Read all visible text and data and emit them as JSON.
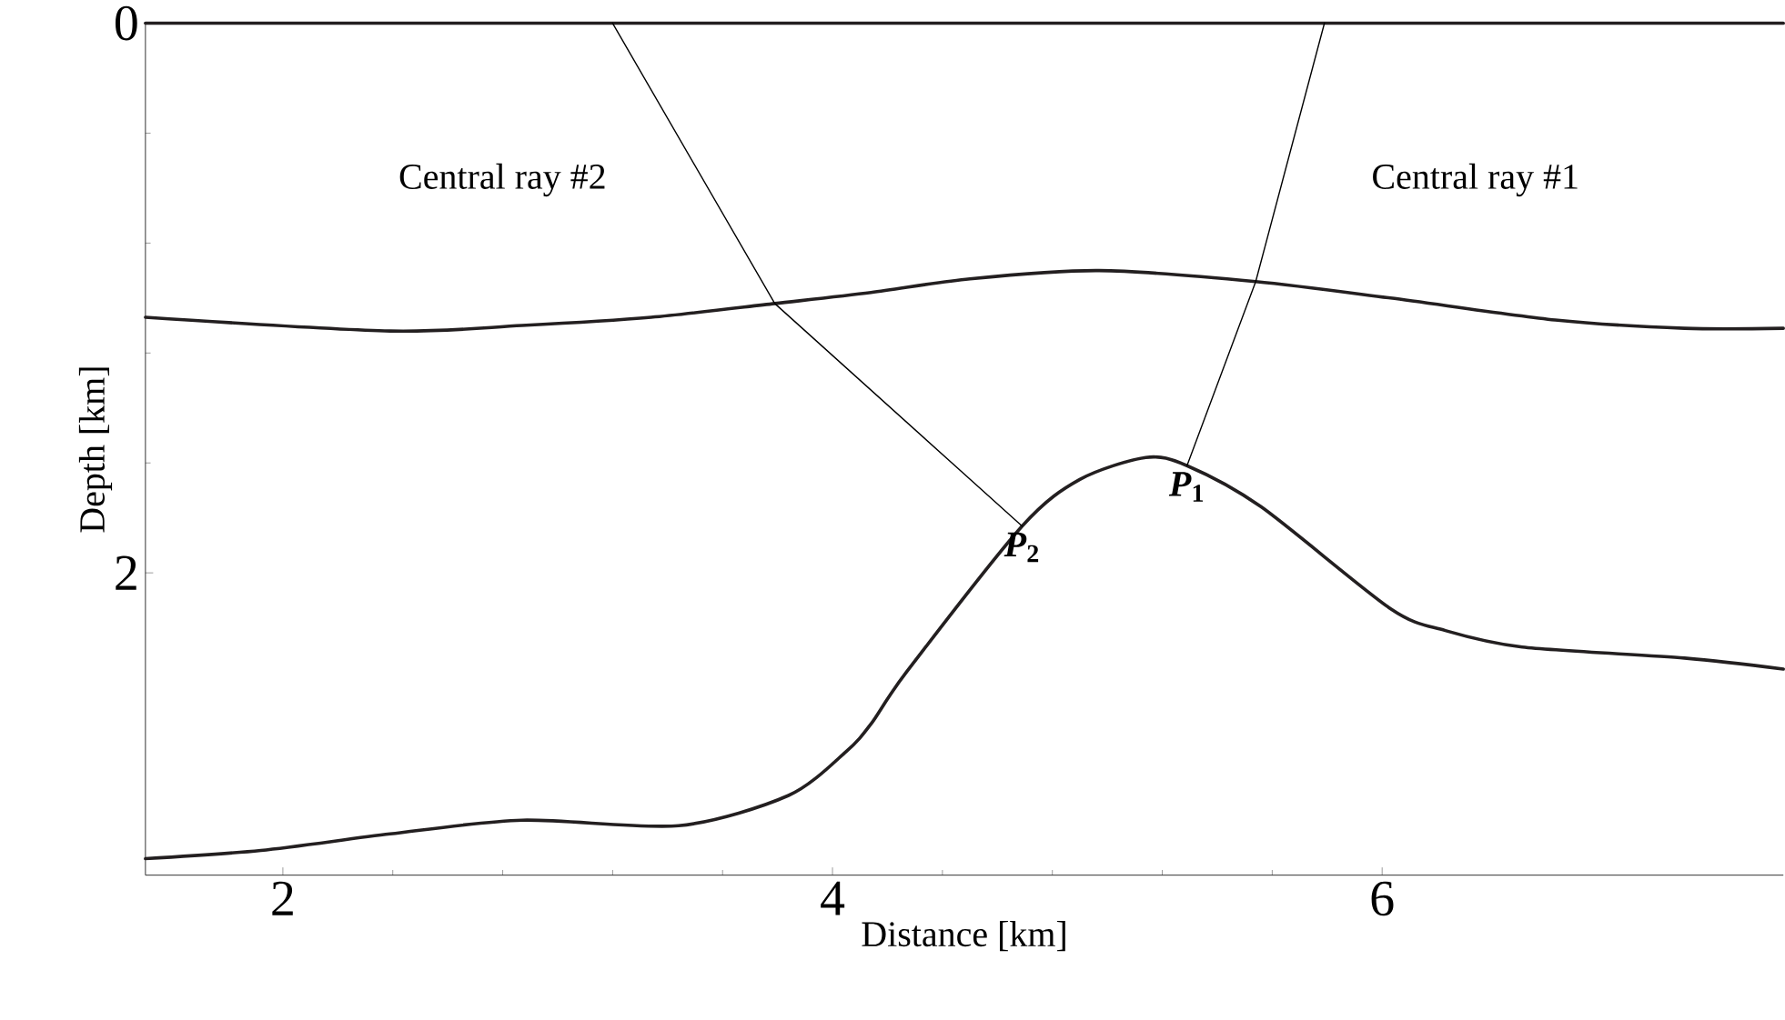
{
  "chart_data": {
    "type": "line",
    "xlabel": "Distance [km]",
    "ylabel": "Depth [km]",
    "xlim": [
      1.5,
      7.46
    ],
    "ylim": [
      3.1,
      0
    ],
    "xticks": [
      2,
      4,
      6
    ],
    "yticks": [
      0,
      2
    ],
    "grid": false,
    "marker": "none",
    "line_style": "solid",
    "series": [
      {
        "color": "#231f20",
        "x": [
          1.5,
          7.46
        ],
        "values": [
          0,
          0
        ]
      },
      {
        "color": "#231f20",
        "x": [
          1.5,
          2.39,
          2.87,
          3.34,
          3.79,
          4.14,
          4.5,
          4.97,
          5.54,
          6.03,
          6.63,
          7.1,
          7.46
        ],
        "values": [
          1.07,
          1.12,
          1.1,
          1.07,
          1.02,
          0.98,
          0.93,
          0.9,
          0.94,
          1.0,
          1.08,
          1.11,
          1.11
        ]
      },
      {
        "color": "#231f20",
        "x": [
          1.5,
          1.92,
          2.39,
          2.87,
          3.44,
          3.84,
          4.05,
          4.14,
          4.27,
          4.69,
          4.9,
          5.14,
          5.29,
          5.56,
          6.03,
          6.23,
          6.51,
          7.1,
          7.46
        ],
        "values": [
          3.04,
          3.01,
          2.95,
          2.9,
          2.92,
          2.81,
          2.65,
          2.55,
          2.36,
          1.83,
          1.66,
          1.58,
          1.61,
          1.76,
          2.13,
          2.21,
          2.27,
          2.31,
          2.35
        ]
      },
      {
        "color": "#000000",
        "x": [
          3.2,
          3.79,
          4.69
        ],
        "values": [
          0,
          1.02,
          1.83
        ]
      },
      {
        "color": "#000000",
        "x": [
          5.79,
          5.54,
          5.29
        ],
        "values": [
          0,
          0.94,
          1.61
        ]
      }
    ],
    "annotations": [
      "Central ray #2",
      "Central ray #1",
      {
        "text": "*P*$_{1}$",
        "x": 5.29,
        "y": 1.61
      },
      {
        "text": "*P*$_{2}$",
        "x": 4.69,
        "y": 1.83
      }
    ]
  }
}
